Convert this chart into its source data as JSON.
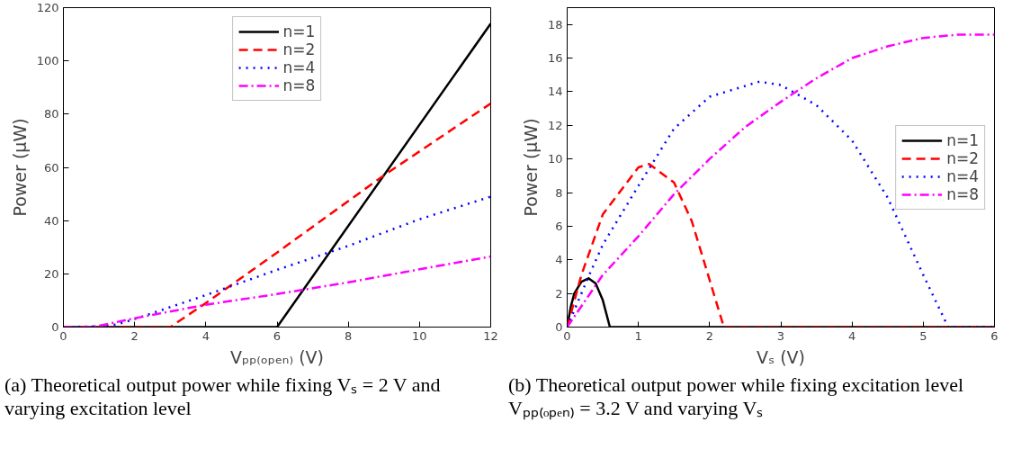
{
  "chart_data": [
    {
      "type": "line",
      "xlabel": "Vₚₚ₍ₒₚₑₙ₎ (V)",
      "ylabel": "Power (μW)",
      "xlim": [
        0,
        12
      ],
      "ylim": [
        0,
        120
      ],
      "xticks": [
        0,
        2,
        4,
        6,
        8,
        10,
        12
      ],
      "yticks": [
        0,
        20,
        40,
        60,
        80,
        100,
        120
      ],
      "grid": false,
      "legend": "top",
      "annotations": [
        "(a) Theoretical output power while fixing Vₛ = 2 V and varying excitation level"
      ],
      "series": [
        {
          "name": "n=1",
          "color": "#000000",
          "line_style": "solid",
          "x": [
            0,
            6,
            12
          ],
          "values": [
            0,
            0,
            114
          ]
        },
        {
          "name": "n=2",
          "color": "#ff0000",
          "line_style": "dashed",
          "x": [
            0,
            3,
            4,
            6,
            9,
            12
          ],
          "values": [
            0,
            0,
            9,
            28,
            57,
            84
          ]
        },
        {
          "name": "n=4",
          "color": "#0000ff",
          "line_style": "dotted",
          "x": [
            0,
            1,
            1.5,
            2,
            4,
            6,
            8,
            10,
            12
          ],
          "values": [
            0,
            0.3,
            1,
            3,
            12,
            21.5,
            30.5,
            40.5,
            49
          ]
        },
        {
          "name": "n=8",
          "color": "#ff00ff",
          "line_style": "dashdot",
          "x": [
            0,
            0.7,
            1,
            2,
            4,
            6,
            8,
            10,
            12
          ],
          "values": [
            0,
            0,
            0.5,
            3.3,
            8.4,
            12.4,
            16.8,
            21.7,
            26.5
          ]
        }
      ]
    },
    {
      "type": "line",
      "xlabel": "Vₛ (V)",
      "ylabel": "Power (μW)",
      "xlim": [
        0,
        6
      ],
      "ylim": [
        0,
        19
      ],
      "xticks": [
        0,
        1,
        2,
        3,
        4,
        5,
        6
      ],
      "yticks": [
        0,
        2,
        4,
        6,
        8,
        10,
        12,
        14,
        16,
        18
      ],
      "grid": false,
      "legend": "right",
      "annotations": [
        "(b) Theoretical output power while fixing excitation level Vₚₚ₍ₒₚₑₙ₎ = 3.2 V and varying Vₛ"
      ],
      "series": [
        {
          "name": "n=1",
          "color": "#000000",
          "line_style": "solid",
          "x": [
            0,
            0.05,
            0.1,
            0.2,
            0.3,
            0.4,
            0.5,
            0.6,
            6
          ],
          "values": [
            0,
            1.2,
            2.0,
            2.7,
            2.9,
            2.6,
            1.6,
            0,
            0
          ]
        },
        {
          "name": "n=2",
          "color": "#ff0000",
          "line_style": "dashed",
          "x": [
            0,
            0.2,
            0.5,
            1.0,
            1.15,
            1.5,
            1.75,
            2.0,
            2.2,
            6
          ],
          "values": [
            0,
            3.1,
            6.7,
            9.5,
            9.7,
            8.6,
            6.3,
            2.8,
            0,
            0
          ]
        },
        {
          "name": "n=4",
          "color": "#0000ff",
          "line_style": "dotted",
          "x": [
            0,
            0.3,
            0.5,
            1,
            1.5,
            2,
            2.7,
            3,
            3.5,
            4,
            4.5,
            5,
            5.35,
            6
          ],
          "values": [
            0,
            3.0,
            4.9,
            8.4,
            11.8,
            13.7,
            14.6,
            14.4,
            13.2,
            11.1,
            7.7,
            3.1,
            0,
            0
          ]
        },
        {
          "name": "n=8",
          "color": "#ff00ff",
          "line_style": "dashdot",
          "x": [
            0,
            0.5,
            1,
            1.5,
            2,
            2.5,
            3,
            3.5,
            4,
            4.5,
            5,
            5.5,
            6
          ],
          "values": [
            0,
            3.1,
            5.4,
            7.9,
            10.0,
            11.9,
            13.4,
            14.8,
            16.0,
            16.7,
            17.2,
            17.4,
            17.4
          ]
        }
      ]
    }
  ]
}
